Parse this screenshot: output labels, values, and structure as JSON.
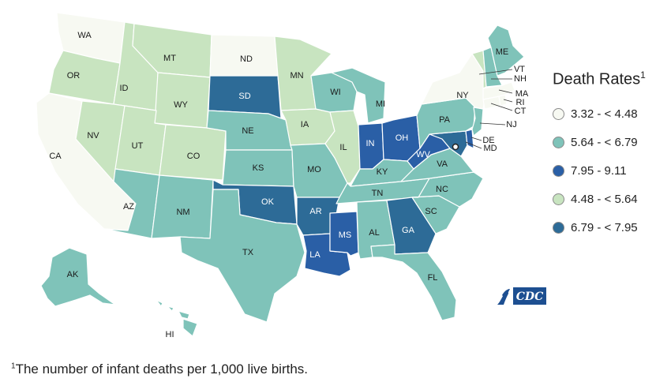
{
  "legend": {
    "title": "Death Rates",
    "title_sup": "1",
    "items": [
      {
        "label": "3.32 - < 4.48",
        "color": "#f7f9f2"
      },
      {
        "label": "5.64 - < 6.79",
        "color": "#7fc3b9"
      },
      {
        "label": "7.95 - 9.11",
        "color": "#2a5fa6"
      },
      {
        "label": "4.48 - < 5.64",
        "color": "#c8e4c0"
      },
      {
        "label": "6.79 - < 7.95",
        "color": "#2d6b97"
      }
    ]
  },
  "footnote": {
    "marker": "1",
    "text": "The number of infant deaths per 1,000 live births."
  },
  "logo": {
    "text": "CDC",
    "icon": "hhs-eagle-icon"
  },
  "colors": {
    "bin1": "#f7f9f2",
    "bin2": "#c8e4c0",
    "bin3": "#7fc3b9",
    "bin4": "#2d6b97",
    "bin5": "#2a5fa6"
  },
  "states": {
    "WA": "WA",
    "OR": "OR",
    "CA": "CA",
    "ID": "ID",
    "NV": "NV",
    "MT": "MT",
    "WY": "WY",
    "UT": "UT",
    "AZ": "AZ",
    "CO": "CO",
    "NM": "NM",
    "ND": "ND",
    "SD": "SD",
    "NE": "NE",
    "KS": "KS",
    "OK": "OK",
    "TX": "TX",
    "MN": "MN",
    "IA": "IA",
    "MO": "MO",
    "AR": "AR",
    "LA": "LA",
    "WI": "WI",
    "IL": "IL",
    "MS": "MS",
    "MI": "MI",
    "IN": "IN",
    "KY": "KY",
    "TN": "TN",
    "AL": "AL",
    "OH": "OH",
    "WV": "WV",
    "GA": "GA",
    "FL": "FL",
    "SC": "SC",
    "NC": "NC",
    "VA": "VA",
    "PA": "PA",
    "NY": "NY",
    "ME": "ME",
    "VT": "VT",
    "NH": "NH",
    "MA": "MA",
    "RI": "RI",
    "CT": "CT",
    "NJ": "NJ",
    "DE": "DE",
    "MD": "MD",
    "AK": "AK",
    "HI": "HI"
  }
}
